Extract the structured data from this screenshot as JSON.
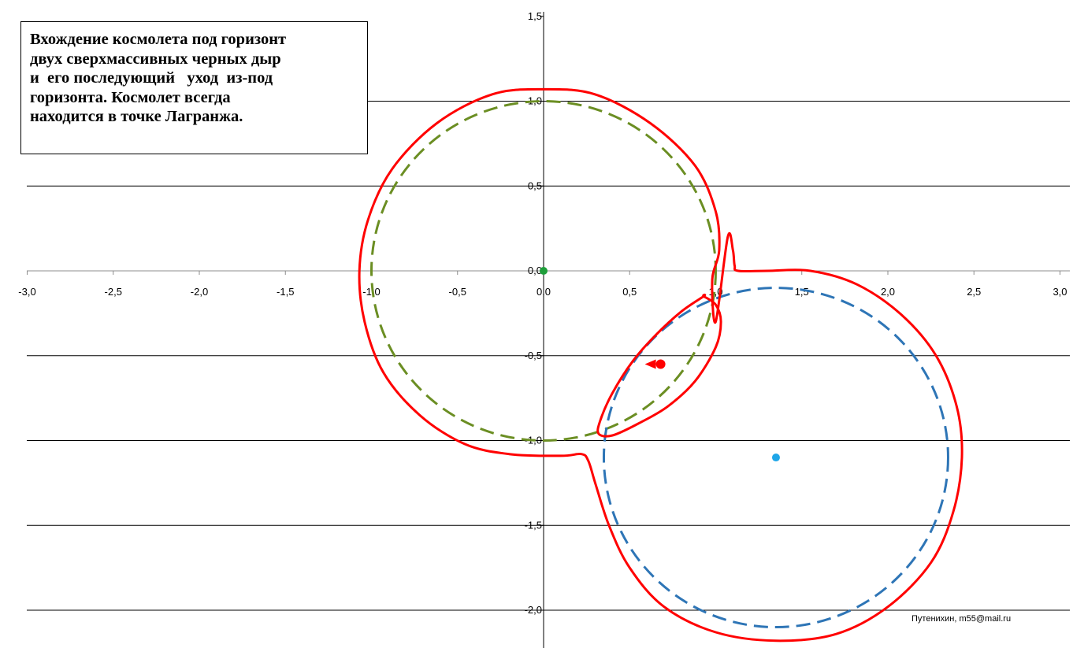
{
  "chart_data": {
    "type": "scatter",
    "title_lines": [
      "Вхождение космолета под горизонт",
      "двух сверхмассивных черных дыр",
      "и  его последующий   уход  из-под",
      "горизонта. Космолет всегда",
      "находится в точке Лагранжа."
    ],
    "credit": "Путенихин, m55@mail.ru",
    "xlim": [
      -3.0,
      3.0
    ],
    "ylim": [
      -2.2,
      1.5
    ],
    "x_ticks": [
      "-3,0",
      "-2,5",
      "-2,0",
      "-1,5",
      "-1,0",
      "-0,5",
      "0,0",
      "0,5",
      "1,0",
      "1,5",
      "2,0",
      "2,5",
      "3,0"
    ],
    "x_tick_values": [
      -3.0,
      -2.5,
      -2.0,
      -1.5,
      -1.0,
      -0.5,
      0.0,
      0.5,
      1.0,
      1.5,
      2.0,
      2.5,
      3.0
    ],
    "y_ticks": [
      "1,5",
      "1,0",
      "0,5",
      "0,0",
      "-0,5",
      "-1,0",
      "-1,5",
      "-2,0"
    ],
    "y_tick_values": [
      1.5,
      1.0,
      0.5,
      0.0,
      -0.5,
      -1.0,
      -1.5,
      -2.0
    ],
    "gridlines": "horizontal",
    "black_holes": [
      {
        "center": [
          0.0,
          0.0
        ],
        "radius": 1.0,
        "horizon_color": "#6b8e23",
        "center_color": "#1e9e3a"
      },
      {
        "center": [
          1.35,
          -1.1
        ],
        "radius": 1.0,
        "horizon_color": "#2e75b6",
        "center_color": "#1fa6e8"
      }
    ],
    "common_horizon": {
      "color": "#ff0000",
      "outer": [
        [
          1.0,
          -0.3
        ],
        [
          0.98,
          -0.05
        ],
        [
          1.02,
          0.12
        ],
        [
          1.0,
          0.35
        ],
        [
          0.88,
          0.62
        ],
        [
          0.62,
          0.87
        ],
        [
          0.3,
          1.04
        ],
        [
          0.0,
          1.07
        ],
        [
          -0.3,
          1.04
        ],
        [
          -0.62,
          0.87
        ],
        [
          -0.88,
          0.6
        ],
        [
          -1.02,
          0.3
        ],
        [
          -1.07,
          0.0
        ],
        [
          -1.04,
          -0.3
        ],
        [
          -0.93,
          -0.6
        ],
        [
          -0.72,
          -0.85
        ],
        [
          -0.46,
          -1.02
        ],
        [
          -0.2,
          -1.08
        ],
        [
          0.1,
          -1.09
        ],
        [
          0.22,
          -1.08
        ],
        [
          0.26,
          -1.12
        ],
        [
          0.3,
          -1.25
        ],
        [
          0.38,
          -1.5
        ],
        [
          0.5,
          -1.75
        ],
        [
          0.7,
          -1.98
        ],
        [
          1.0,
          -2.13
        ],
        [
          1.35,
          -2.18
        ],
        [
          1.7,
          -2.14
        ],
        [
          2.0,
          -1.98
        ],
        [
          2.25,
          -1.72
        ],
        [
          2.38,
          -1.42
        ],
        [
          2.43,
          -1.1
        ],
        [
          2.4,
          -0.8
        ],
        [
          2.28,
          -0.5
        ],
        [
          2.08,
          -0.26
        ],
        [
          1.82,
          -0.08
        ],
        [
          1.55,
          0.0
        ],
        [
          1.3,
          0.0
        ],
        [
          1.13,
          0.0
        ],
        [
          1.11,
          0.03
        ],
        [
          1.1,
          0.12
        ],
        [
          1.07,
          0.2
        ]
      ],
      "inner": [
        [
          0.93,
          -0.15
        ],
        [
          1.0,
          -0.2
        ],
        [
          1.03,
          -0.3
        ],
        [
          1.0,
          -0.45
        ],
        [
          0.88,
          -0.65
        ],
        [
          0.72,
          -0.8
        ],
        [
          0.55,
          -0.9
        ],
        [
          0.4,
          -0.97
        ],
        [
          0.32,
          -0.96
        ],
        [
          0.33,
          -0.88
        ],
        [
          0.4,
          -0.72
        ],
        [
          0.52,
          -0.53
        ],
        [
          0.65,
          -0.38
        ],
        [
          0.8,
          -0.24
        ],
        [
          0.93,
          -0.15
        ]
      ]
    },
    "spacecraft": {
      "point": [
        0.68,
        -0.55
      ],
      "color": "#ff0000"
    }
  }
}
